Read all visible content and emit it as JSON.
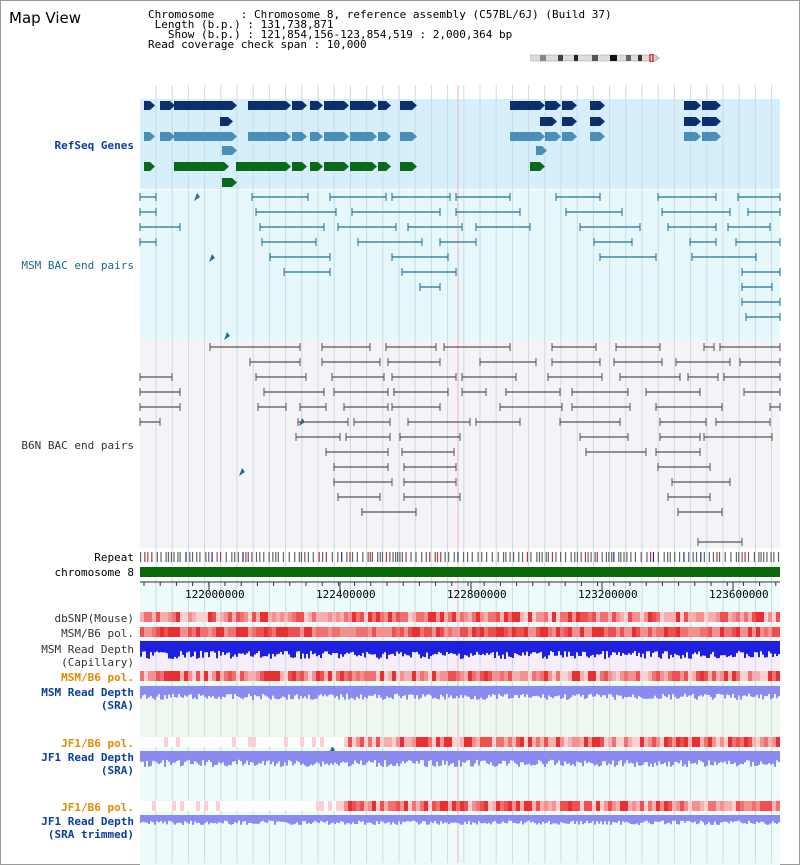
{
  "title": "Map View",
  "info": {
    "chromosome_label": "Chromosome",
    "chromosome_value": "Chromosome 8, reference assembly (C57BL/6J) (Build 37)",
    "length_label": "Length (b.p.)",
    "length_value": "131,738,871",
    "show_label": "Show (b.p.)",
    "show_value": "121,854,156-123,854,519 : 2,000,364 bp",
    "coverage_label": "Read coverage check span",
    "coverage_value": "10,000"
  },
  "tracks": {
    "refseq": "RefSeq Genes",
    "msm_bac": "MSM BAC end pairs",
    "b6n_bac": "B6N BAC end pairs",
    "repeat": "Repeat",
    "chromosome": "chromosome 8",
    "dbsnp": "dbSNP(Mouse)",
    "msm_b6_pol": "MSM/B6 pol.",
    "msm_depth_cap_1": "MSM Read Depth",
    "msm_depth_cap_2": "(Capillary)",
    "msm_b6_pol2": "MSM/B6 pol.",
    "msm_depth_sra_1": "MSM Read Depth",
    "msm_depth_sra_2": "(SRA)",
    "jf1_b6_pol": "JF1/B6 pol.",
    "jf1_depth_sra_1": "JF1 Read Depth",
    "jf1_depth_sra_2": "(SRA)",
    "jf1_b6_pol2": "JF1/B6 pol.",
    "jf1_depth_trim_1": "JF1 Read Depth",
    "jf1_depth_trim_2": "(SRA trimmed)"
  },
  "axis": {
    "ticks": [
      "122000000",
      "122400000",
      "122800000",
      "123200000",
      "123600000"
    ]
  },
  "colors": {
    "refseq_dark": "#0d2f6e",
    "refseq_light": "#4a8fb8",
    "refseq_green": "#0a6a1a",
    "bac": "#1f6f96",
    "b6n": "#555555",
    "chromosome": "#0a6a0a",
    "depth": "#1f1fe0",
    "depth_light": "#8a8af0"
  }
}
